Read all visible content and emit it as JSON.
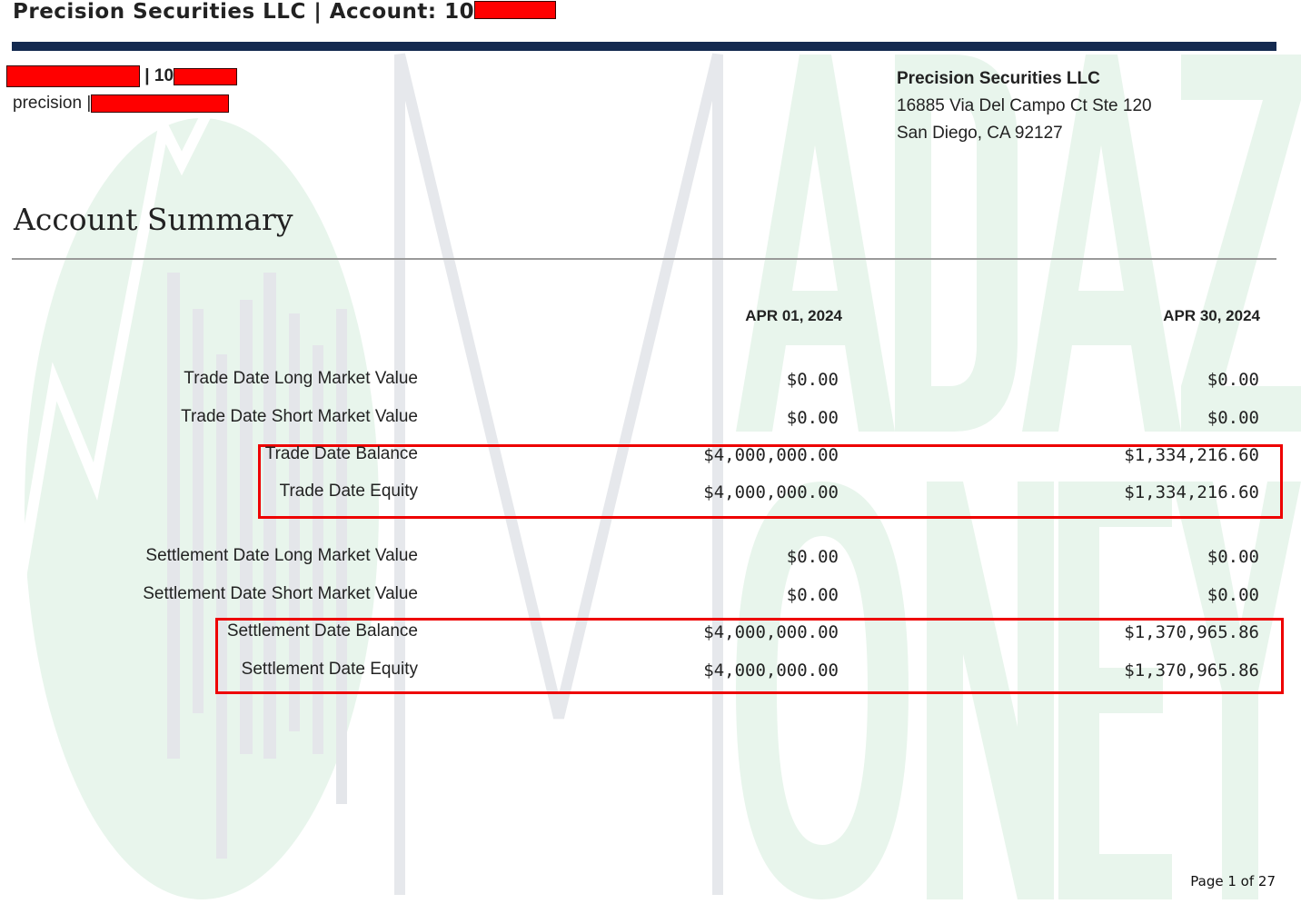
{
  "header": {
    "title": "Precision Securities LLC | Account: 10",
    "account_line_prefix": "| 10",
    "user_line_prefix": "precision |"
  },
  "firm": {
    "name": "Precision Securities LLC",
    "address1": "16885 Via Del Campo Ct Ste 120",
    "address2": "San Diego, CA 92127"
  },
  "section_title": "Account Summary",
  "columns": [
    "APR 01, 2024",
    "APR 30, 2024"
  ],
  "rows": [
    {
      "label": "Trade Date Long Market Value",
      "start": "$0.00",
      "end": "$0.00"
    },
    {
      "label": "Trade Date Short Market Value",
      "start": "$0.00",
      "end": "$0.00"
    },
    {
      "label": "Trade Date Balance",
      "start": "$4,000,000.00",
      "end": "$1,334,216.60"
    },
    {
      "label": "Trade Date Equity",
      "start": "$4,000,000.00",
      "end": "$1,334,216.60"
    },
    {
      "label": "Settlement Date Long Market Value",
      "start": "$0.00",
      "end": "$0.00"
    },
    {
      "label": "Settlement Date Short Market Value",
      "start": "$0.00",
      "end": "$0.00"
    },
    {
      "label": "Settlement Date Balance",
      "start": "$4,000,000.00",
      "end": "$1,370,965.86"
    },
    {
      "label": "Settlement Date Equity",
      "start": "$4,000,000.00",
      "end": "$1,370,965.86"
    }
  ],
  "footer": {
    "page": "Page 1 of 27"
  },
  "watermark": {
    "text": "ADAZ MONEY"
  },
  "colors": {
    "header_bar": "#142a50",
    "highlight_box": "#ee0000",
    "redaction": "#ff0000",
    "watermark_green": "#e8f5ec"
  }
}
